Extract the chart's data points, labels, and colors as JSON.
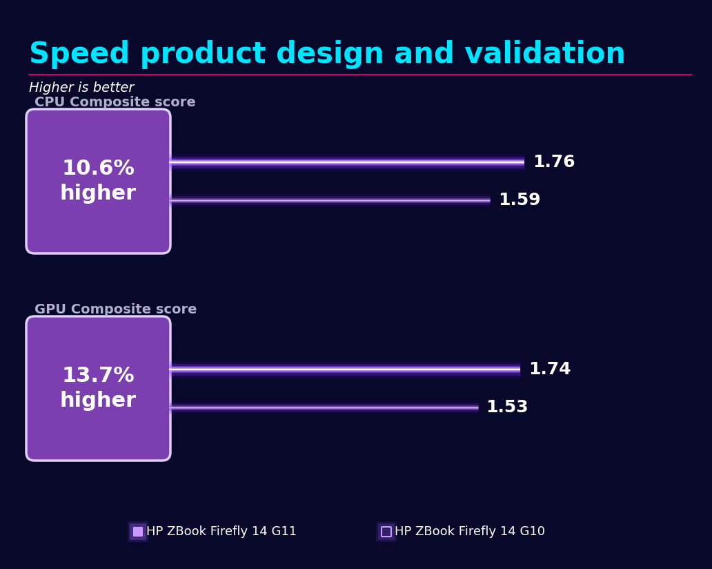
{
  "title": "Speed product design and validation",
  "subtitle": "Higher is better",
  "background_color": "#08082a",
  "title_color": "#00e5ff",
  "subtitle_color": "#ffffff",
  "separator_color": "#cc0066",
  "section_label_color": "#b0b0cc",
  "bar_value_color": "#ffffff",
  "sections": [
    {
      "label": "CPU Composite score",
      "pct_text": "10.6%\nhigher",
      "bars": [
        {
          "value": 1.76,
          "label": "1.76",
          "is_g11": true
        },
        {
          "value": 1.59,
          "label": "1.59",
          "is_g11": false
        }
      ]
    },
    {
      "label": "GPU Composite score",
      "pct_text": "13.7%\nhigher",
      "bars": [
        {
          "value": 1.74,
          "label": "1.74",
          "is_g11": true
        },
        {
          "value": 1.53,
          "label": "1.53",
          "is_g11": false
        }
      ]
    }
  ],
  "max_bar_value": 2.0,
  "legend": [
    {
      "label": "HP ZBook Firefly 14 G11",
      "filled": true
    },
    {
      "label": "HP ZBook Firefly 14 G10",
      "filled": false
    }
  ],
  "box_color": "#7b3fb0",
  "box_border_color": "#e0d0ff",
  "bar_g11_core": "#ffffff",
  "bar_g11_glow": "#9966ff",
  "bar_g10_core": "#7755bb",
  "bar_g10_glow": "#5533aa"
}
